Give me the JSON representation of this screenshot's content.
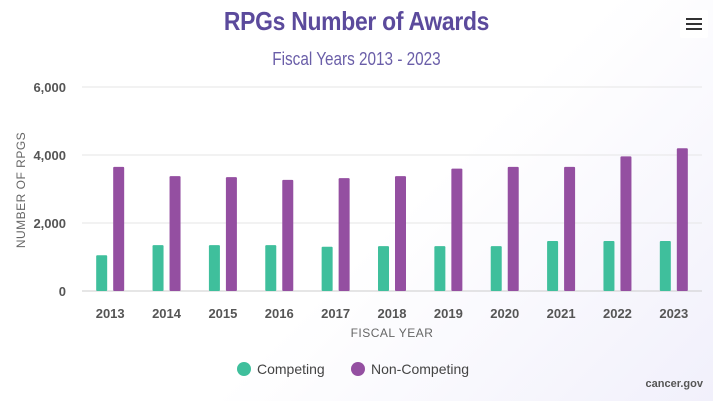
{
  "chart_data": {
    "type": "bar",
    "title": "RPGs Number of Awards",
    "subtitle": "Fiscal Years 2013 - 2023",
    "xlabel": "FISCAL YEAR",
    "ylabel": "NUMBER OF RPGS",
    "categories": [
      "2013",
      "2014",
      "2015",
      "2016",
      "2017",
      "2018",
      "2019",
      "2020",
      "2021",
      "2022",
      "2023"
    ],
    "ylim": [
      0,
      6000
    ],
    "yticks": [
      0,
      2000,
      4000,
      6000
    ],
    "ytick_labels": [
      "0",
      "2,000",
      "4,000",
      "6,000"
    ],
    "grid": true,
    "legend_position": "bottom",
    "series": [
      {
        "name": "Competing",
        "color": "#3fbf9c",
        "values": [
          1050,
          1350,
          1350,
          1350,
          1300,
          1320,
          1320,
          1320,
          1470,
          1470,
          1470
        ]
      },
      {
        "name": "Non-Competing",
        "color": "#944fa1",
        "values": [
          3650,
          3380,
          3350,
          3270,
          3320,
          3380,
          3600,
          3650,
          3650,
          3960,
          4200
        ]
      }
    ]
  },
  "credit": "cancer.gov",
  "menu_icon": "hamburger-menu-icon"
}
